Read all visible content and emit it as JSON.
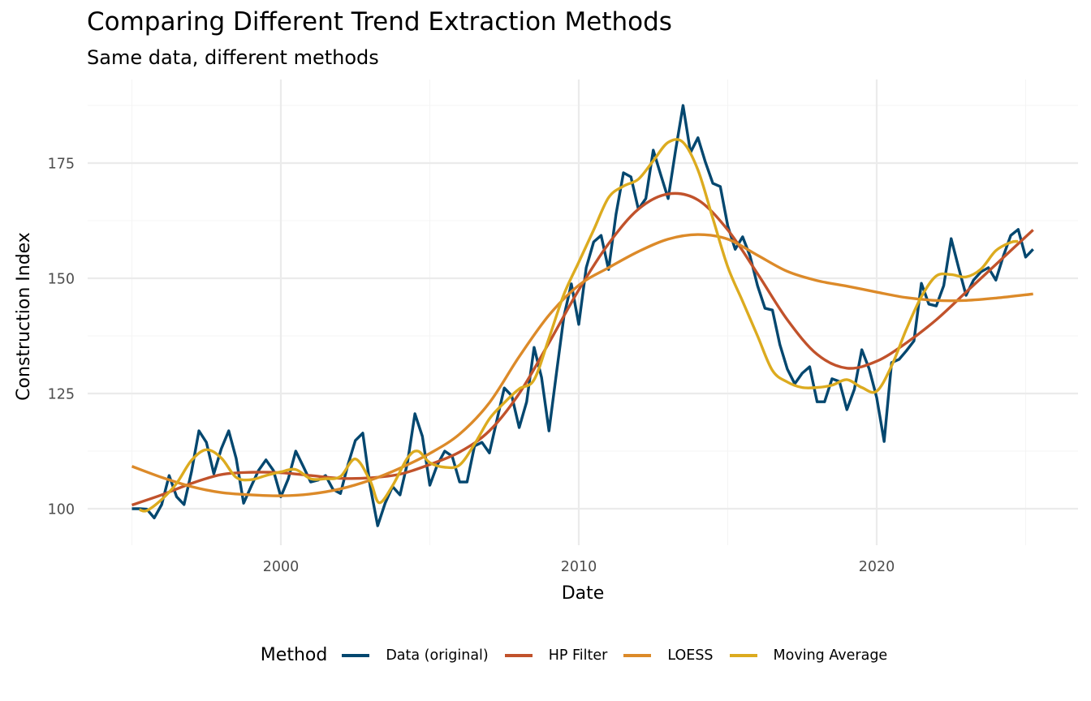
{
  "chart_data": {
    "type": "line",
    "title": "Comparing Different Trend Extraction Methods",
    "subtitle": "Same data, different methods",
    "xlabel": "Date",
    "ylabel": "Construction Index",
    "xlim": [
      1994.0,
      2026.2
    ],
    "ylim": [
      92.5,
      191.5
    ],
    "x_ticks": [
      2000,
      2010,
      2020
    ],
    "x_tick_labels": [
      "2000",
      "2010",
      "2020"
    ],
    "y_ticks": [
      100,
      125,
      150,
      175
    ],
    "y_tick_labels": [
      "100",
      "125",
      "150",
      "175"
    ],
    "grid": true,
    "legend": {
      "title": "Method",
      "position": "bottom",
      "entries": [
        "Data (original)",
        "HP Filter",
        "LOESS",
        "Moving Average"
      ]
    },
    "series": [
      {
        "name": "Data (original)",
        "color": "#03476f",
        "smooth": false,
        "x_start": 1995.0,
        "x_step": 0.25,
        "values": [
          100.0,
          100.0,
          99.9,
          98.0,
          100.9,
          107.2,
          102.6,
          100.9,
          108.0,
          116.9,
          114.4,
          107.6,
          113.0,
          116.9,
          110.9,
          101.2,
          104.8,
          108.3,
          110.6,
          108.3,
          102.6,
          106.5,
          112.5,
          109.2,
          105.8,
          106.2,
          107.2,
          104.2,
          103.3,
          109.5,
          114.8,
          116.4,
          104.8,
          96.3,
          101.2,
          104.8,
          103.0,
          110.0,
          120.6,
          115.7,
          105.1,
          109.5,
          112.5,
          111.4,
          105.8,
          105.8,
          113.6,
          114.4,
          112.1,
          119.2,
          126.2,
          124.5,
          117.6,
          123.2,
          135.0,
          128.5,
          116.9,
          129.4,
          141.7,
          148.8,
          140.0,
          152.3,
          157.9,
          159.3,
          151.9,
          163.9,
          172.9,
          172.0,
          165.0,
          167.3,
          177.8,
          172.5,
          167.3,
          177.8,
          187.5,
          177.3,
          180.5,
          175.2,
          170.6,
          169.9,
          161.4,
          156.3,
          159.0,
          154.8,
          148.4,
          143.5,
          143.1,
          135.6,
          130.3,
          127.1,
          129.4,
          130.8,
          123.2,
          123.2,
          128.2,
          127.6,
          121.5,
          125.9,
          134.5,
          130.3,
          124.1,
          114.6,
          131.7,
          132.4,
          134.3,
          136.4,
          148.9,
          144.4,
          144.0,
          148.4,
          158.6,
          152.3,
          146.3,
          149.6,
          151.4,
          152.3,
          149.6,
          154.8,
          159.3,
          160.6,
          154.6,
          156.3
        ]
      },
      {
        "name": "HP Filter",
        "color": "#c1522b",
        "smooth": true,
        "x": [
          1995,
          1996,
          1997,
          1998,
          1999,
          2000,
          2001,
          2002,
          2003,
          2004,
          2005,
          2006,
          2007,
          2008,
          2009,
          2010,
          2011,
          2012,
          2013,
          2014,
          2015,
          2016,
          2017,
          2018,
          2019,
          2020,
          2021,
          2022,
          2023,
          2024,
          2025.25
        ],
        "values": [
          100.8,
          103.0,
          105.5,
          107.4,
          107.9,
          107.8,
          107.2,
          106.6,
          106.7,
          107.5,
          109.6,
          112.3,
          116.9,
          125.0,
          136.0,
          147.5,
          157.5,
          165.0,
          168.3,
          167.0,
          160.5,
          151.0,
          141.0,
          133.5,
          130.5,
          132.0,
          136.0,
          141.0,
          147.0,
          153.0,
          160.5
        ]
      },
      {
        "name": "LOESS",
        "color": "#dc8a29",
        "smooth": true,
        "x": [
          1995,
          1996,
          1997,
          1998,
          1999,
          2000,
          2001,
          2002,
          2003,
          2004,
          2005,
          2006,
          2007,
          2008,
          2009,
          2010,
          2011,
          2012,
          2013,
          2014,
          2015,
          2016,
          2017,
          2018,
          2019,
          2020,
          2021,
          2022,
          2023,
          2024,
          2025.25
        ],
        "values": [
          109.2,
          106.8,
          104.8,
          103.5,
          103.0,
          102.8,
          103.2,
          104.3,
          106.2,
          108.8,
          112.0,
          116.2,
          123.0,
          133.0,
          142.0,
          148.5,
          152.3,
          155.8,
          158.5,
          159.5,
          158.5,
          155.0,
          151.5,
          149.5,
          148.3,
          147.0,
          145.8,
          145.2,
          145.2,
          145.7,
          146.6
        ]
      },
      {
        "name": "Moving Average",
        "color": "#dcab1f",
        "smooth": true,
        "x": [
          1995.25,
          1995.5,
          1996.0,
          1996.5,
          1997.0,
          1997.5,
          1998.0,
          1998.5,
          1999.0,
          1999.5,
          2000.0,
          2000.5,
          2001.0,
          2001.5,
          2002.0,
          2002.5,
          2003.0,
          2003.3,
          2003.75,
          2004.25,
          2004.6,
          2005.0,
          2005.5,
          2006.0,
          2006.5,
          2007.0,
          2007.5,
          2008.0,
          2008.5,
          2009.0,
          2009.5,
          2010.0,
          2010.5,
          2011.0,
          2011.5,
          2012.0,
          2012.5,
          2013.0,
          2013.5,
          2014.0,
          2014.5,
          2015.0,
          2015.5,
          2016.0,
          2016.5,
          2017.0,
          2017.5,
          2018.0,
          2018.5,
          2019.0,
          2019.5,
          2020.0,
          2020.5,
          2021.0,
          2021.5,
          2022.0,
          2022.5,
          2023.0,
          2023.5,
          2024.0,
          2024.5,
          2024.75
        ],
        "values": [
          99.8,
          99.6,
          102.0,
          105.5,
          110.5,
          112.8,
          111.0,
          106.8,
          106.3,
          107.2,
          108.0,
          108.5,
          106.5,
          106.5,
          107.0,
          110.8,
          106.0,
          101.3,
          105.0,
          111.0,
          112.5,
          110.0,
          109.0,
          109.5,
          114.0,
          119.5,
          123.0,
          126.0,
          128.0,
          137.0,
          146.5,
          153.5,
          160.5,
          167.5,
          170.0,
          171.5,
          175.5,
          179.5,
          179.5,
          173.5,
          163.0,
          152.5,
          145.0,
          137.5,
          130.0,
          127.5,
          126.3,
          126.3,
          126.8,
          128.0,
          126.3,
          125.5,
          131.0,
          139.0,
          146.0,
          150.5,
          150.8,
          150.3,
          152.0,
          156.0,
          157.8,
          158.0
        ]
      }
    ]
  }
}
